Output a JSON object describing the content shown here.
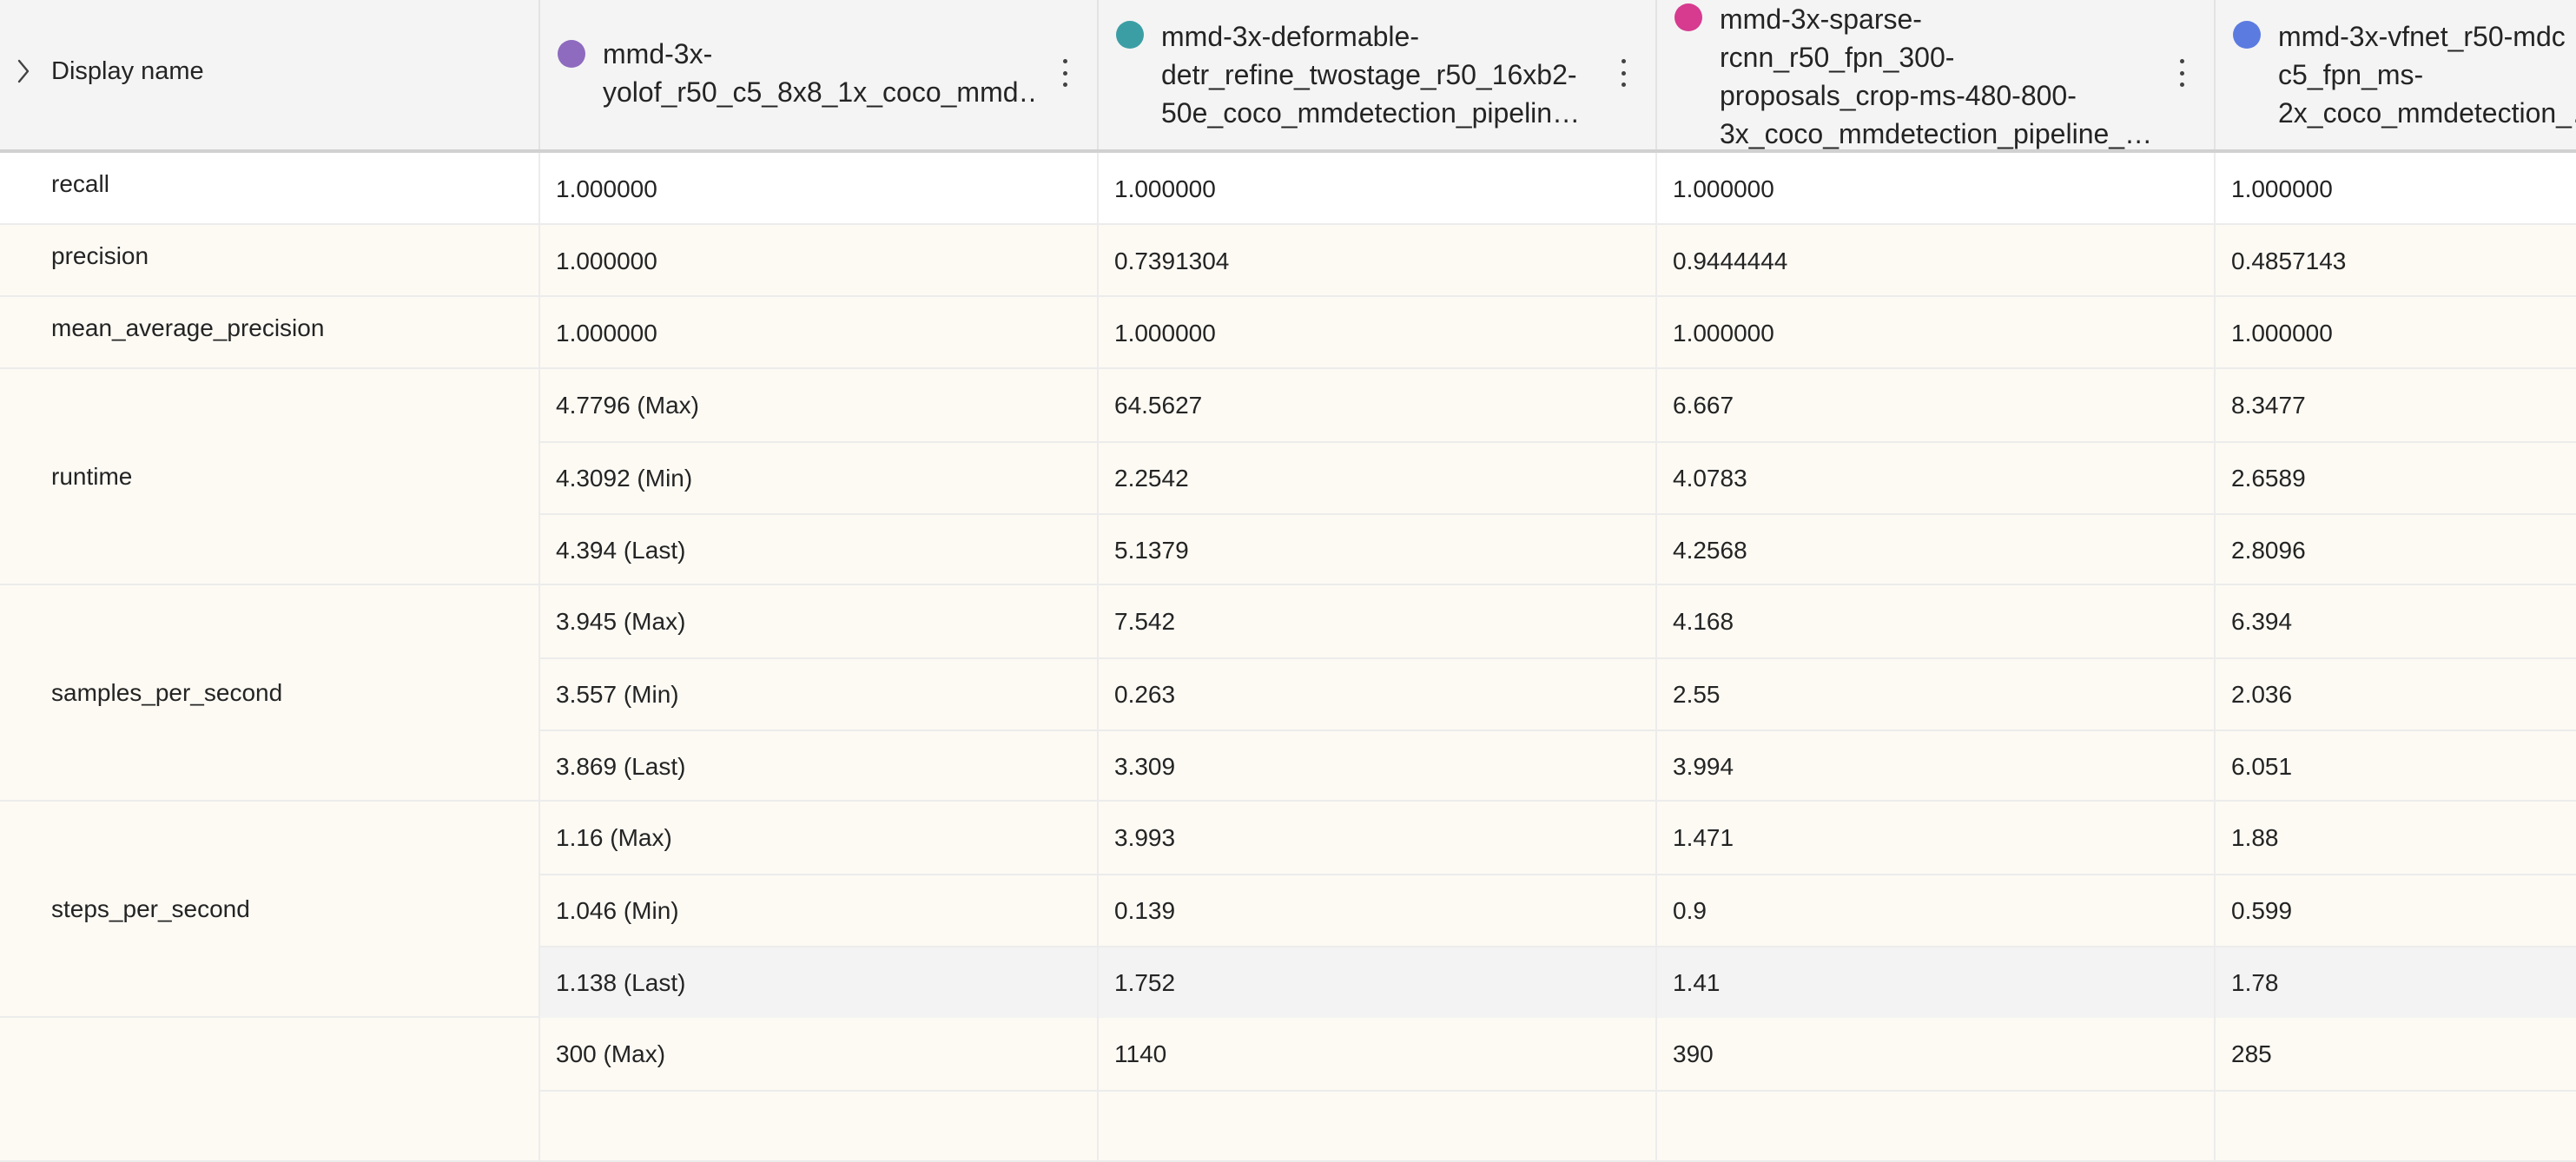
{
  "header": {
    "display_name_label": "Display name",
    "columns": [
      {
        "title": "mmd-3x-\nyolof_r50_c5_8x8_1x_coco_mmd…",
        "color": "#8e6bbf"
      },
      {
        "title": "mmd-3x-deformable-\ndetr_refine_twostage_r50_16xb2-\n50e_coco_mmdetection_pipelin…",
        "color": "#3c9ea5"
      },
      {
        "title": "mmd-3x-sparse-\nrcnn_r50_fpn_300-\nproposals_crop-ms-480-800-\n3x_coco_mmdetection_pipeline_…",
        "color": "#d63b8f"
      },
      {
        "title": "mmd-3x-vfnet_r50-mdc\nc5_fpn_ms-\n2x_coco_mmdetection_…",
        "color": "#5b7be0"
      }
    ]
  },
  "metrics": [
    {
      "name": "recall",
      "rows": [
        [
          "1.000000",
          "1.000000",
          "1.000000",
          "1.000000"
        ]
      ]
    },
    {
      "name": "precision",
      "rows": [
        [
          "1.000000",
          "0.7391304",
          "0.9444444",
          "0.4857143"
        ]
      ]
    },
    {
      "name": "mean_average_precision",
      "rows": [
        [
          "1.000000",
          "1.000000",
          "1.000000",
          "1.000000"
        ]
      ]
    },
    {
      "name": "runtime",
      "rows": [
        [
          "4.7796 (Max)",
          "64.5627",
          "6.667",
          "8.3477"
        ],
        [
          "4.3092 (Min)",
          "2.2542",
          "4.0783",
          "2.6589"
        ],
        [
          "4.394 (Last)",
          "5.1379",
          "4.2568",
          "2.8096"
        ]
      ]
    },
    {
      "name": "samples_per_second",
      "rows": [
        [
          "3.945 (Max)",
          "7.542",
          "4.168",
          "6.394"
        ],
        [
          "3.557 (Min)",
          "0.263",
          "2.55",
          "2.036"
        ],
        [
          "3.869 (Last)",
          "3.309",
          "3.994",
          "6.051"
        ]
      ]
    },
    {
      "name": "steps_per_second",
      "rows": [
        [
          "1.16 (Max)",
          "3.993",
          "1.471",
          "1.88"
        ],
        [
          "1.046 (Min)",
          "0.139",
          "0.9",
          "0.599"
        ],
        [
          "1.138 (Last)",
          "1.752",
          "1.41",
          "1.78"
        ]
      ]
    },
    {
      "name": "",
      "rows": [
        [
          "300 (Max)",
          "1140",
          "390",
          "285"
        ],
        [
          "",
          "",
          "",
          ""
        ]
      ]
    }
  ]
}
